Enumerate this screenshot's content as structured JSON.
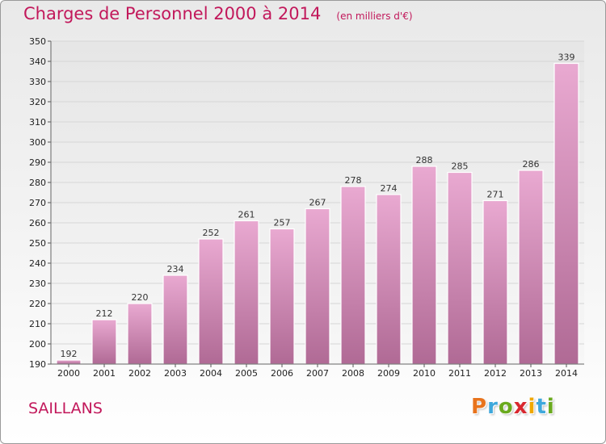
{
  "header": {
    "title": "Charges de Personnel 2000 à 2014",
    "subtitle": "(en milliers d'€)"
  },
  "footer": {
    "place": "SAILLANS",
    "logo": "Proxiti",
    "logo_colors": [
      "#e8731c",
      "#3ea8dc",
      "#6aaa1e",
      "#d9282f",
      "#f0a800",
      "#3ea8dc",
      "#6aaa1e"
    ]
  },
  "colors": {
    "bar_light": "#e7a6cf",
    "bar_dark": "#b36d97",
    "title": "#c2185b",
    "grid": "#d6d6d6"
  },
  "chart_data": {
    "type": "bar",
    "categories": [
      "2000",
      "2001",
      "2002",
      "2003",
      "2004",
      "2005",
      "2006",
      "2007",
      "2008",
      "2009",
      "2010",
      "2011",
      "2012",
      "2013",
      "2014"
    ],
    "values": [
      192,
      212,
      220,
      234,
      252,
      261,
      257,
      267,
      278,
      274,
      288,
      285,
      271,
      286,
      339
    ],
    "title": "Charges de Personnel 2000 à 2014",
    "ylim": [
      190,
      350
    ],
    "yticks": [
      190,
      200,
      210,
      220,
      230,
      240,
      250,
      260,
      270,
      280,
      290,
      300,
      310,
      320,
      330,
      340,
      350
    ],
    "grid": true
  }
}
